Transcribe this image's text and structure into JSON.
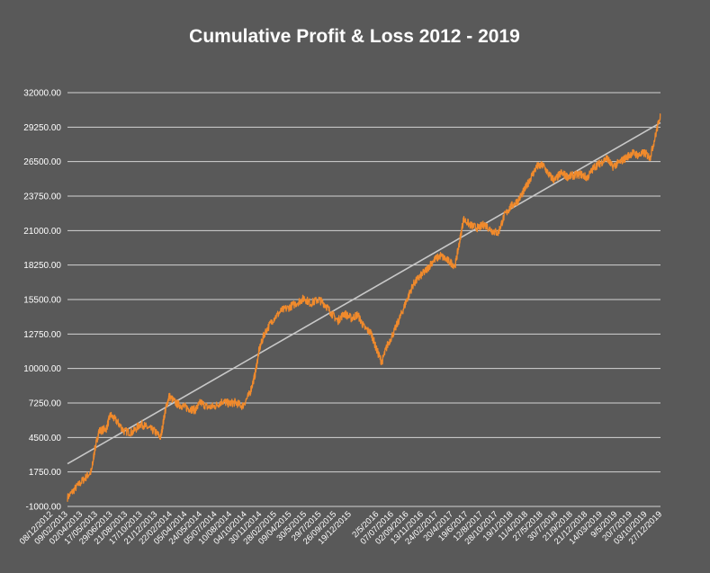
{
  "chart_data": {
    "type": "line",
    "title": "Cumulative Profit & Loss 2012 - 2019",
    "xlabel": "",
    "ylabel": "",
    "ylim": [
      -1000,
      32000
    ],
    "y_ticks": [
      "32000.00",
      "29250.00",
      "26500.00",
      "23750.00",
      "21000.00",
      "18250.00",
      "15500.00",
      "12750.00",
      "10000.00",
      "7250.00",
      "4500.00",
      "1750.00",
      "-1000.00"
    ],
    "x_ticks": [
      "08/12/2012",
      "09/02/2013",
      "02/04/2013",
      "17/05/2013",
      "29/06/2013",
      "21/08/2013",
      "17/10/2013",
      "21/12/2013",
      "22/02/2014",
      "05/04/2014",
      "24/05/2014",
      "05/07/2014",
      "10/08/2014",
      "04/10/2014",
      "30/11/2014",
      "28/02/2015",
      "09/04/2015",
      "30/5/2015",
      "29/7/2015",
      "26/09/2015",
      "19/12/2015",
      "2/5/2016",
      "07/07/2016",
      "02/09/2016",
      "13/11/2016",
      "24/02/2017",
      "20/4/2017",
      "19/6/2017",
      "12/8/2017",
      "28/10/2017",
      "19/1/2018",
      "11/4/2018",
      "27/5/2018",
      "30/7/2018",
      "21/9/2018",
      "21/12/2018",
      "14/03/2019",
      "9/5/2019",
      "20/7/2019",
      "03/10/2019",
      "27/12/2019"
    ],
    "series": [
      {
        "name": "",
        "color": "#f08a2c",
        "points": [
          [
            0,
            -300
          ],
          [
            0.8,
            500
          ],
          [
            1.6,
            1200
          ],
          [
            2.3,
            1800
          ],
          [
            2.6,
            3500
          ],
          [
            3.0,
            5000
          ],
          [
            3.7,
            5200
          ],
          [
            4.1,
            6300
          ],
          [
            4.8,
            5700
          ],
          [
            5.4,
            5000
          ],
          [
            6.2,
            4900
          ],
          [
            7.0,
            5600
          ],
          [
            7.6,
            5300
          ],
          [
            8.3,
            5000
          ],
          [
            8.9,
            4500
          ],
          [
            9.3,
            6500
          ],
          [
            9.7,
            7800
          ],
          [
            10.4,
            7200
          ],
          [
            11.0,
            7000
          ],
          [
            11.6,
            6800
          ],
          [
            12.2,
            6700
          ],
          [
            12.7,
            7300
          ],
          [
            13.4,
            6900
          ],
          [
            14.1,
            7000
          ],
          [
            14.8,
            7400
          ],
          [
            15.4,
            7200
          ],
          [
            16.0,
            7300
          ],
          [
            16.7,
            7000
          ],
          [
            17.4,
            8000
          ],
          [
            17.9,
            9500
          ],
          [
            18.3,
            11500
          ],
          [
            18.8,
            12800
          ],
          [
            19.6,
            13900
          ],
          [
            20.4,
            14600
          ],
          [
            21.2,
            14900
          ],
          [
            22.0,
            15300
          ],
          [
            22.6,
            15600
          ],
          [
            23.2,
            15200
          ],
          [
            24.0,
            15500
          ],
          [
            24.6,
            15100
          ],
          [
            25.2,
            14400
          ],
          [
            25.8,
            13800
          ],
          [
            26.4,
            14400
          ],
          [
            27.1,
            14000
          ],
          [
            27.7,
            14300
          ],
          [
            28.3,
            13300
          ],
          [
            29.0,
            12800
          ],
          [
            29.5,
            11500
          ],
          [
            30.0,
            10500
          ],
          [
            30.5,
            11800
          ],
          [
            31.2,
            13000
          ],
          [
            31.8,
            14200
          ],
          [
            32.4,
            15500
          ],
          [
            33.0,
            16700
          ],
          [
            33.6,
            17300
          ],
          [
            34.2,
            17800
          ],
          [
            34.9,
            18600
          ],
          [
            35.6,
            19000
          ],
          [
            36.3,
            18600
          ],
          [
            37.0,
            18200
          ],
          [
            37.4,
            20000
          ],
          [
            37.8,
            21900
          ],
          [
            38.5,
            21400
          ],
          [
            39.2,
            21200
          ],
          [
            39.8,
            21500
          ],
          [
            40.5,
            21000
          ],
          [
            41.1,
            20800
          ],
          [
            41.7,
            22200
          ],
          [
            42.3,
            22900
          ],
          [
            43.0,
            23400
          ],
          [
            43.6,
            24200
          ],
          [
            44.2,
            25200
          ],
          [
            44.8,
            26100
          ],
          [
            45.4,
            26200
          ],
          [
            46.0,
            25400
          ],
          [
            46.5,
            25000
          ],
          [
            47.1,
            25600
          ],
          [
            47.7,
            25300
          ],
          [
            48.3,
            25400
          ],
          [
            49.0,
            25500
          ],
          [
            49.6,
            25200
          ],
          [
            50.3,
            26100
          ],
          [
            50.9,
            26400
          ],
          [
            51.5,
            26800
          ],
          [
            52.0,
            26100
          ],
          [
            52.6,
            26400
          ],
          [
            53.3,
            26800
          ],
          [
            53.9,
            27200
          ],
          [
            54.5,
            27000
          ],
          [
            55.1,
            27200
          ],
          [
            55.6,
            26800
          ],
          [
            56.1,
            28500
          ],
          [
            56.6,
            30300
          ]
        ],
        "x_max": 56.6
      },
      {
        "name": "",
        "color": "#c8c8c8",
        "points": [
          [
            0,
            2400
          ],
          [
            56.6,
            29600
          ]
        ]
      }
    ],
    "legend": "none",
    "grid": true
  }
}
